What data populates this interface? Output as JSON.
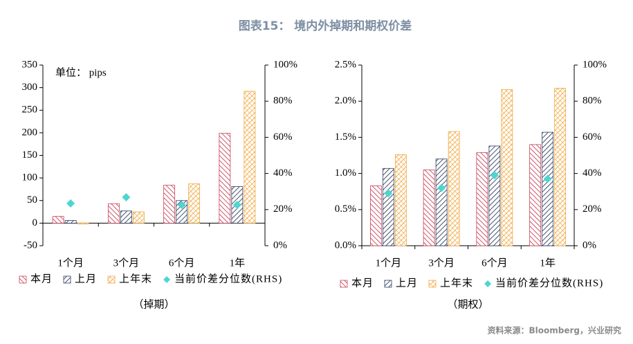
{
  "title": "图表15： 境内外掉期和期权价差",
  "source": "资料来源：Bloomberg，兴业研究",
  "chart_data": [
    {
      "type": "bar",
      "xlabel": "（掉期）",
      "annotation": "单位： pips",
      "categories": [
        "1个月",
        "3个月",
        "6个月",
        "1年"
      ],
      "series": [
        {
          "name": "本月",
          "color": "#c8445a",
          "values": [
            15,
            43,
            84,
            199
          ]
        },
        {
          "name": "上月",
          "color": "#2f3e5e",
          "values": [
            6,
            27,
            50,
            81
          ]
        },
        {
          "name": "上年末",
          "color": "#f0a840",
          "values": [
            -2,
            25,
            87,
            292
          ]
        },
        {
          "name": "当前价差分位数(RHS)",
          "color": "#4fd5d0",
          "axis": "y2",
          "values": [
            23.4,
            26.8,
            22.6,
            22.6
          ]
        }
      ],
      "ylim": [
        -50,
        350
      ],
      "yticks": [
        -50,
        0,
        50,
        100,
        150,
        200,
        250,
        300,
        350
      ],
      "y2lim": [
        0,
        100
      ],
      "y2ticks": [
        {
          "value": 0,
          "label": "0%"
        },
        {
          "value": 20,
          "label": "20%"
        },
        {
          "value": 40,
          "label": "40%"
        },
        {
          "value": 60,
          "label": "60%"
        },
        {
          "value": 80,
          "label": "80%"
        },
        {
          "value": 100,
          "label": "100%"
        }
      ]
    },
    {
      "type": "bar",
      "xlabel": "（期权）",
      "categories": [
        "1个月",
        "3个月",
        "6个月",
        "1年"
      ],
      "series": [
        {
          "name": "本月",
          "color": "#c8445a",
          "values": [
            0.83,
            1.05,
            1.29,
            1.4
          ]
        },
        {
          "name": "上月",
          "color": "#2f3e5e",
          "values": [
            1.07,
            1.2,
            1.38,
            1.57
          ]
        },
        {
          "name": "上年末",
          "color": "#f0a840",
          "values": [
            1.26,
            1.58,
            2.16,
            2.18
          ]
        },
        {
          "name": "当前价差分位数(RHS)",
          "color": "#4fd5d0",
          "axis": "y2",
          "values": [
            29,
            32,
            39,
            37
          ]
        }
      ],
      "ylim": [
        0,
        2.5
      ],
      "yticks": [
        {
          "value": 0,
          "label": "0.0%"
        },
        {
          "value": 0.5,
          "label": "0.5%"
        },
        {
          "value": 1.0,
          "label": "1.0%"
        },
        {
          "value": 1.5,
          "label": "1.5%"
        },
        {
          "value": 2.0,
          "label": "2.0%"
        },
        {
          "value": 2.5,
          "label": "2.5%"
        }
      ],
      "y2lim": [
        0,
        100
      ],
      "y2ticks": [
        {
          "value": 0,
          "label": "0%"
        },
        {
          "value": 20,
          "label": "20%"
        },
        {
          "value": 40,
          "label": "40%"
        },
        {
          "value": 60,
          "label": "60%"
        },
        {
          "value": 80,
          "label": "80%"
        },
        {
          "value": 100,
          "label": "100%"
        }
      ]
    }
  ]
}
